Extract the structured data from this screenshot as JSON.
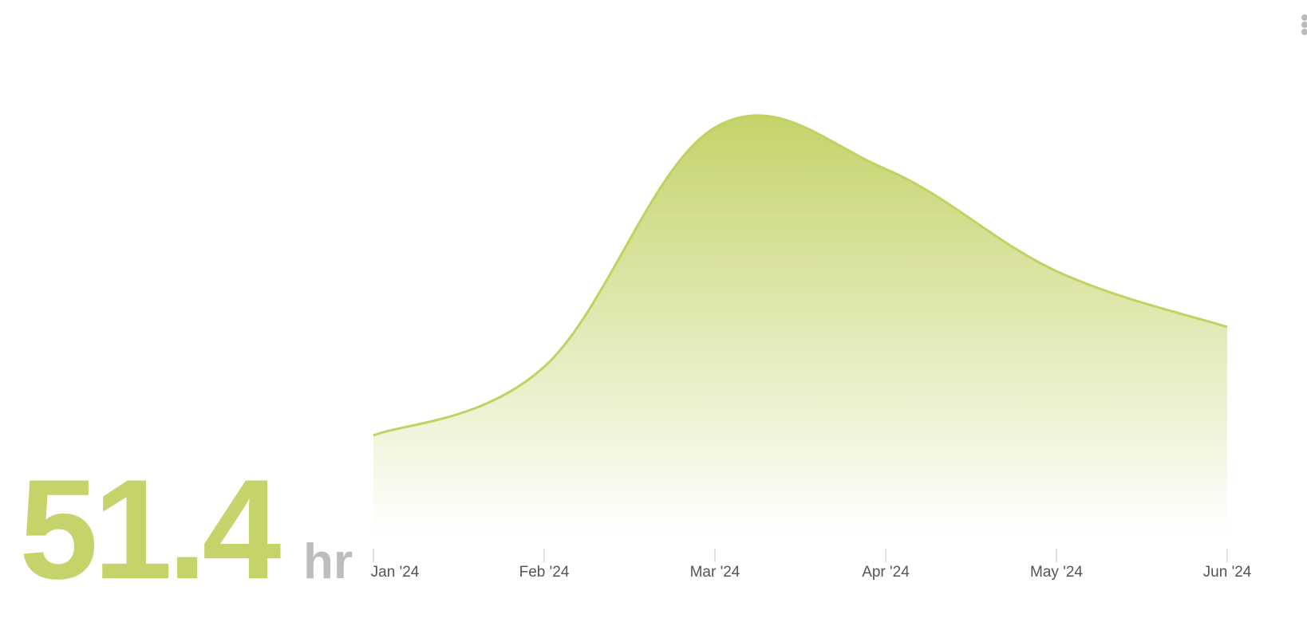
{
  "kpi": {
    "value": "51.4",
    "unit": "hr"
  },
  "chart_data": {
    "type": "area",
    "categories": [
      "Jan '24",
      "Feb '24",
      "Mar '24",
      "Apr '24",
      "May '24",
      "Jun '24"
    ],
    "values": [
      12.4,
      21,
      51,
      45.8,
      33,
      26
    ],
    "color": "#c2d161",
    "ylim": [
      0,
      60
    ],
    "grid": false
  }
}
